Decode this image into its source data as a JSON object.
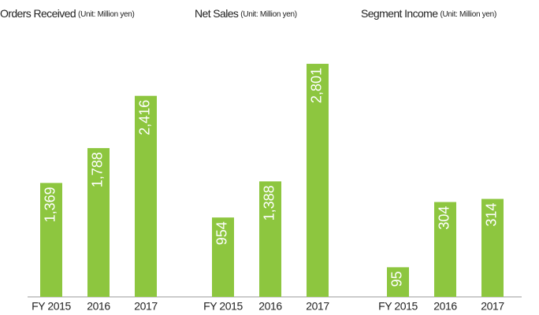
{
  "chart_data": [
    {
      "type": "bar",
      "title": "Orders Received",
      "subtitle": "(Unit: Million yen)",
      "categories": [
        "FY 2015",
        "2016",
        "2017"
      ],
      "values": [
        1369,
        1788,
        2416
      ],
      "value_labels": [
        "1,369",
        "1,788",
        "2,416"
      ],
      "color": "#8dc63f",
      "ylim": [
        0,
        3000
      ]
    },
    {
      "type": "bar",
      "title": "Net Sales",
      "subtitle": "(Unit: Million yen)",
      "categories": [
        "FY 2015",
        "2016",
        "2017"
      ],
      "values": [
        954,
        1388,
        2801
      ],
      "value_labels": [
        "954",
        "1,388",
        "2,801"
      ],
      "color": "#8dc63f",
      "ylim": [
        0,
        3000
      ]
    },
    {
      "type": "bar",
      "title": "Segment Income",
      "subtitle": "(Unit: Million yen)",
      "categories": [
        "FY 2015",
        "2016",
        "2017"
      ],
      "values": [
        95,
        304,
        314
      ],
      "value_labels": [
        "95",
        "304",
        "314"
      ],
      "color": "#8dc63f",
      "ylim": [
        0,
        800
      ]
    }
  ]
}
